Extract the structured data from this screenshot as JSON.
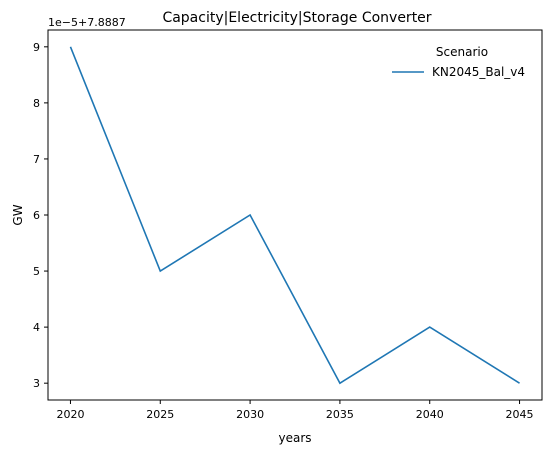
{
  "chart_data": {
    "type": "line",
    "title": "Capacity|Electricity|Storage Converter",
    "xlabel": "years",
    "ylabel": "GW",
    "y_offset_label": "1e−5+7.8887",
    "x": [
      2020,
      2025,
      2030,
      2035,
      2040,
      2045
    ],
    "x_ticks": [
      "2020",
      "2025",
      "2030",
      "2035",
      "2040",
      "2045"
    ],
    "y_ticks": [
      "3",
      "4",
      "5",
      "6",
      "7",
      "8",
      "9"
    ],
    "y_tick_values": [
      3,
      4,
      5,
      6,
      7,
      8,
      9
    ],
    "xlim": [
      2018.75,
      2046.25
    ],
    "ylim": [
      2.7,
      9.3
    ],
    "legend": {
      "title": "Scenario",
      "placement": "top-right"
    },
    "series": [
      {
        "name": "KN2045_Bal_v4",
        "color": "#1f77b4",
        "values": [
          9,
          5,
          6,
          3,
          4,
          3
        ]
      }
    ],
    "grid": false
  }
}
